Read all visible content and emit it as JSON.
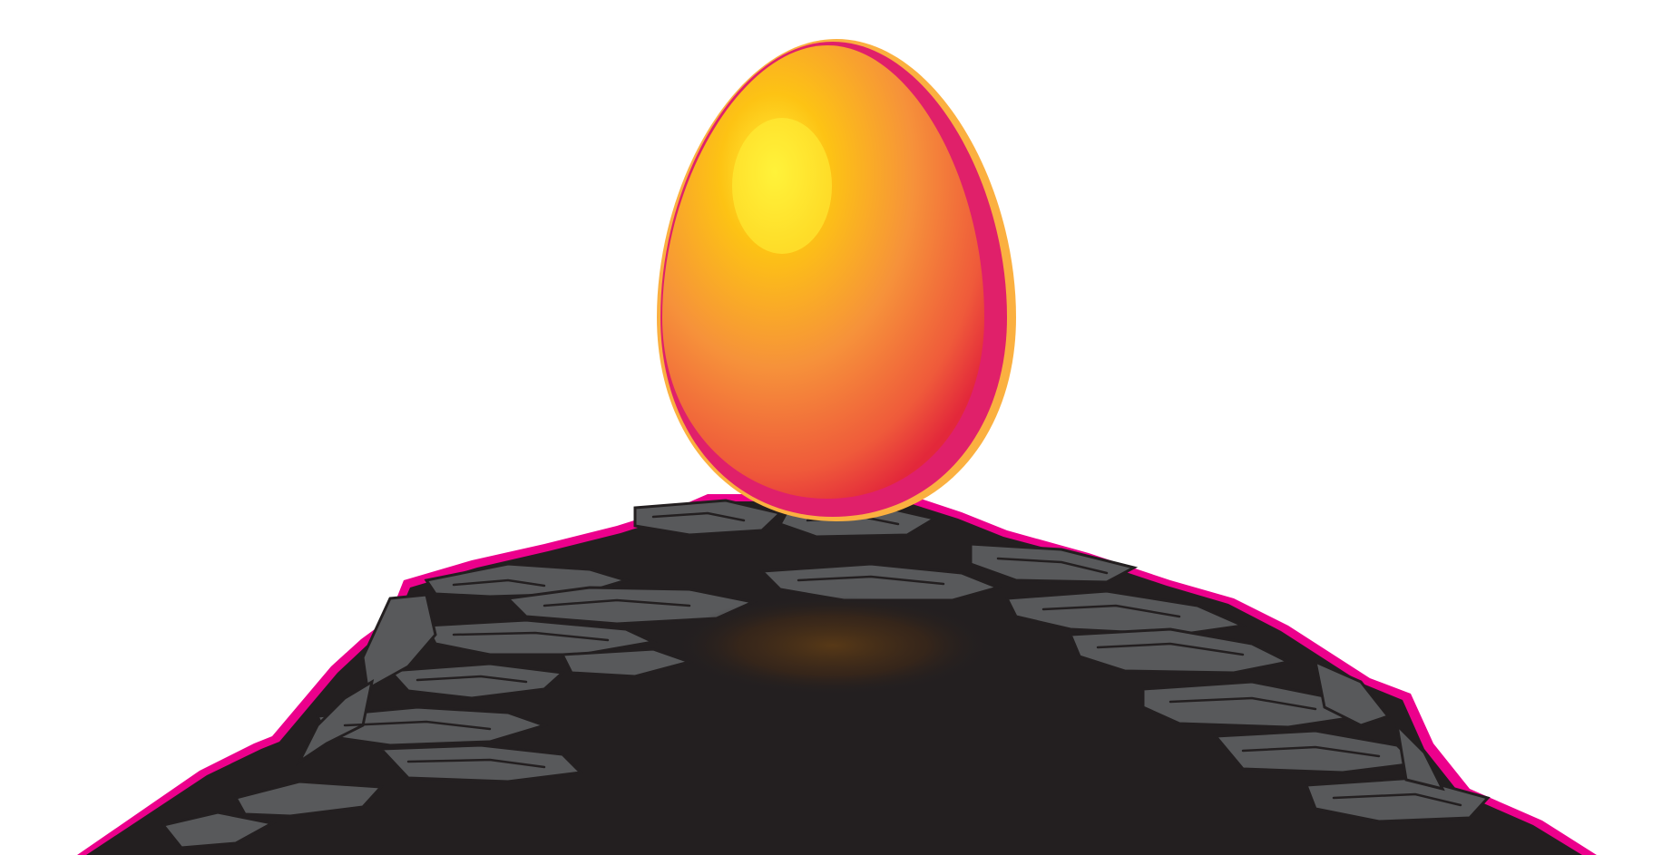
{
  "scene": {
    "subject": "egg-icon",
    "base": "rock-icon"
  },
  "colors": {
    "background": "#ffffff",
    "rock_dark": "#231f20",
    "rock_stone": "#58595b",
    "rock_stone_light": "#6d6e71",
    "rim_magenta": "#ec008c",
    "egg_highlight": "#fff23a",
    "egg_mid": "#f7941d",
    "egg_edge": "#ef4136",
    "egg_rim": "#fbb040",
    "glow": "#5a3a16"
  }
}
